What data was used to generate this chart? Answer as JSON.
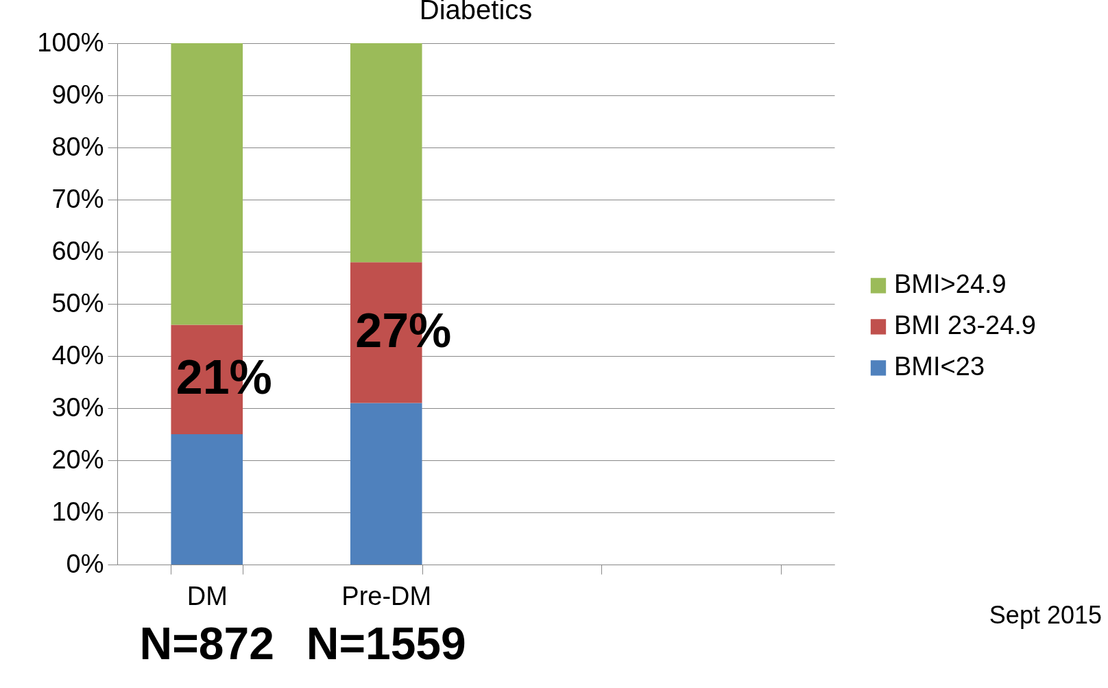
{
  "chart_data": {
    "type": "bar",
    "title": "Diabetics",
    "stacked": true,
    "categories": [
      "DM",
      "Pre-DM",
      null,
      null
    ],
    "series": [
      {
        "name": "BMI<23",
        "color": "#4f81bd",
        "values": [
          25,
          31,
          null,
          null
        ]
      },
      {
        "name": "BMI 23-24.9",
        "color": "#c0504d",
        "values": [
          21,
          27,
          null,
          null
        ],
        "value_labels": [
          "21%",
          "27%",
          null,
          null
        ]
      },
      {
        "name": "BMI>24.9",
        "color": "#9bbb59",
        "values": [
          54,
          42,
          null,
          null
        ]
      }
    ],
    "ylim": [
      0,
      100
    ],
    "yticks": [
      {
        "value": 0,
        "label": "0%"
      },
      {
        "value": 10,
        "label": "10%"
      },
      {
        "value": 20,
        "label": "20%"
      },
      {
        "value": 30,
        "label": "30%"
      },
      {
        "value": 40,
        "label": "40%"
      },
      {
        "value": 50,
        "label": "50%"
      },
      {
        "value": 60,
        "label": "60%"
      },
      {
        "value": 70,
        "label": "70%"
      },
      {
        "value": 80,
        "label": "80%"
      },
      {
        "value": 90,
        "label": "90%"
      },
      {
        "value": 100,
        "label": "100%"
      }
    ],
    "grid": "y",
    "legend": "right",
    "annotations": [
      "N=872",
      "N=1559",
      "Sept 2015"
    ]
  }
}
